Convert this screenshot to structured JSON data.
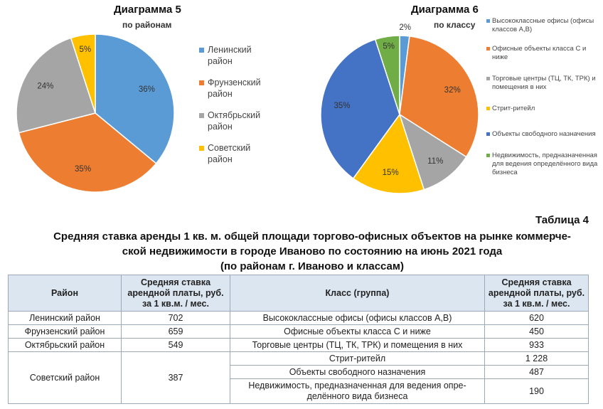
{
  "chart_data": [
    {
      "type": "pie",
      "title": "Диаграмма 5",
      "subtitle": "по районам",
      "slices": [
        {
          "label": "Ленинский район",
          "value": 36,
          "text": "36%",
          "color": "#5b9bd5"
        },
        {
          "label": "Фрунзенский район",
          "value": 35,
          "text": "35%",
          "color": "#ed7d31"
        },
        {
          "label": "Октябрьский район",
          "value": 24,
          "text": "24%",
          "color": "#a5a5a5"
        },
        {
          "label": "Советский район",
          "value": 5,
          "text": "5%",
          "color": "#ffc000"
        }
      ]
    },
    {
      "type": "pie",
      "title": "Диаграмма 6",
      "subtitle": "по классу",
      "slices": [
        {
          "label": "Высококлассные офисы (офисы классов А,В)",
          "value": 2,
          "text": "2%",
          "color": "#5b9bd5"
        },
        {
          "label": "Офисные объекты класса С и ниже",
          "value": 32,
          "text": "32%",
          "color": "#ed7d31"
        },
        {
          "label": "Торговые центры (ТЦ, ТК, ТРК) и помещения в них",
          "value": 11,
          "text": "11%",
          "color": "#a5a5a5"
        },
        {
          "label": "Стрит-ритейл",
          "value": 15,
          "text": "15%",
          "color": "#ffc000"
        },
        {
          "label": "Объекты свободного назначения",
          "value": 35,
          "text": "35%",
          "color": "#4472c4"
        },
        {
          "label": "Недвижимость, предназначенная для ведения определённого вида бизнеса",
          "value": 5,
          "text": "5%",
          "color": "#70ad47"
        }
      ]
    }
  ],
  "table": {
    "number": "Таблица 4",
    "caption_lines": [
      "Средняя ставка аренды 1 кв. м. общей площади торгово-офисных объектов на рынке коммерче-",
      "ской недвижимости в городе Иваново по состоянию на июнь 2021 года",
      "(по районам г. Иваново и классам)"
    ],
    "headers": [
      "Район",
      "Средняя ставка арендной платы, руб. за 1 кв.м. / мес.",
      "Класс (группа)",
      "Средняя ставка арендной платы, руб. за 1 кв.м. / мес."
    ],
    "districts": [
      {
        "name": "Ленинский район",
        "rate": "702"
      },
      {
        "name": "Фрунзенский район",
        "rate": "659"
      },
      {
        "name": "Октябрьский район",
        "rate": "549"
      },
      {
        "name": "Советский район",
        "rate": "387"
      }
    ],
    "classes": [
      {
        "name": "Высококлассные офисы (офисы классов А,В)",
        "rate": "620"
      },
      {
        "name": "Офисные объекты класса С и ниже",
        "rate": "450"
      },
      {
        "name": "Торговые центры (ТЦ, ТК, ТРК) и помещения в них",
        "rate": "933"
      },
      {
        "name": "Стрит-ритейл",
        "rate": "1 228"
      },
      {
        "name": "Объекты свободного назначения",
        "rate": "487"
      },
      {
        "name": "Недвижимость, предназначенная для ведения опре-делённого вида бизнеса",
        "rate": "190"
      }
    ]
  }
}
